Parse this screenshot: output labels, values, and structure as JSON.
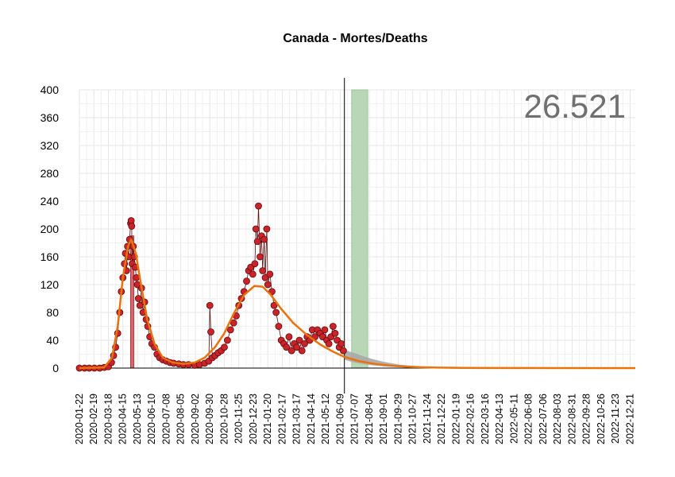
{
  "title": "Canada - Mortes/Deaths",
  "total_label": "26.521",
  "colors": {
    "points": "#cc2229",
    "point_outline": "#5a1010",
    "trend_line": "#e8730c",
    "confidence_band": "#a9a9a9",
    "highlight_band": "#b9d7b7",
    "peak_bar": "#d46a6f",
    "grid": "#e6e6e6"
  },
  "chart_data": {
    "type": "scatter",
    "title": "Canada - Mortes/Deaths",
    "xlabel": "",
    "ylabel": "",
    "ylim": [
      0,
      400
    ],
    "xlim": [
      "2020-01-22",
      "2022-12-31"
    ],
    "y_ticks": [
      0,
      40,
      80,
      120,
      160,
      200,
      240,
      280,
      320,
      360,
      400
    ],
    "x_tick_labels": [
      "2020-01-22",
      "2020-02-19",
      "2020-03-18",
      "2020-04-15",
      "2020-05-13",
      "2020-06-10",
      "2020-07-08",
      "2020-08-05",
      "2020-09-02",
      "2020-09-30",
      "2020-10-28",
      "2020-11-25",
      "2020-12-23",
      "2021-01-20",
      "2021-02-17",
      "2021-03-17",
      "2021-04-14",
      "2021-05-12",
      "2021-06-09",
      "2021-07-07",
      "2021-08-04",
      "2021-09-01",
      "2021-09-29",
      "2021-10-27",
      "2021-11-24",
      "2021-12-22",
      "2022-01-19",
      "2022-02-16",
      "2022-03-16",
      "2022-04-13",
      "2022-05-11",
      "2022-06-08",
      "2022-07-06",
      "2022-08-03",
      "2022-08-31",
      "2022-09-28",
      "2022-10-26",
      "2022-11-23",
      "2022-12-21"
    ],
    "grid": true,
    "reference_line_date": "2021-06-17",
    "highlight_band": [
      "2021-07-01",
      "2021-08-01"
    ],
    "peak_bar": {
      "x": [
        "2020-04-30",
        "2020-05-06"
      ],
      "y": 190
    },
    "series": [
      {
        "type": "scatter",
        "points": [
          [
            "2020-01-22",
            0
          ],
          [
            "2020-02-01",
            0
          ],
          [
            "2020-02-10",
            0
          ],
          [
            "2020-02-20",
            0
          ],
          [
            "2020-03-01",
            0
          ],
          [
            "2020-03-10",
            1
          ],
          [
            "2020-03-18",
            2
          ],
          [
            "2020-03-24",
            8
          ],
          [
            "2020-03-28",
            18
          ],
          [
            "2020-04-01",
            30
          ],
          [
            "2020-04-05",
            50
          ],
          [
            "2020-04-09",
            80
          ],
          [
            "2020-04-12",
            110
          ],
          [
            "2020-04-15",
            130
          ],
          [
            "2020-04-18",
            150
          ],
          [
            "2020-04-20",
            165
          ],
          [
            "2020-04-22",
            140
          ],
          [
            "2020-04-24",
            175
          ],
          [
            "2020-04-26",
            160
          ],
          [
            "2020-04-28",
            185
          ],
          [
            "2020-04-30",
            208
          ],
          [
            "2020-05-01",
            212
          ],
          [
            "2020-05-02",
            204
          ],
          [
            "2020-05-03",
            150
          ],
          [
            "2020-05-05",
            175
          ],
          [
            "2020-05-07",
            160
          ],
          [
            "2020-05-09",
            145
          ],
          [
            "2020-05-11",
            130
          ],
          [
            "2020-05-13",
            120
          ],
          [
            "2020-05-15",
            100
          ],
          [
            "2020-05-18",
            90
          ],
          [
            "2020-05-21",
            115
          ],
          [
            "2020-05-24",
            80
          ],
          [
            "2020-05-27",
            95
          ],
          [
            "2020-05-30",
            70
          ],
          [
            "2020-06-02",
            60
          ],
          [
            "2020-06-06",
            45
          ],
          [
            "2020-06-10",
            35
          ],
          [
            "2020-06-15",
            30
          ],
          [
            "2020-06-20",
            20
          ],
          [
            "2020-06-25",
            15
          ],
          [
            "2020-07-01",
            12
          ],
          [
            "2020-07-08",
            10
          ],
          [
            "2020-07-15",
            8
          ],
          [
            "2020-07-22",
            7
          ],
          [
            "2020-08-01",
            6
          ],
          [
            "2020-08-10",
            5
          ],
          [
            "2020-08-20",
            5
          ],
          [
            "2020-09-01",
            4
          ],
          [
            "2020-09-10",
            5
          ],
          [
            "2020-09-20",
            7
          ],
          [
            "2020-09-28",
            10
          ],
          [
            "2020-09-30",
            90
          ],
          [
            "2020-10-02",
            52
          ],
          [
            "2020-10-05",
            15
          ],
          [
            "2020-10-10",
            18
          ],
          [
            "2020-10-16",
            22
          ],
          [
            "2020-10-22",
            25
          ],
          [
            "2020-10-28",
            30
          ],
          [
            "2020-11-03",
            40
          ],
          [
            "2020-11-09",
            55
          ],
          [
            "2020-11-15",
            65
          ],
          [
            "2020-11-20",
            75
          ],
          [
            "2020-11-25",
            90
          ],
          [
            "2020-11-30",
            100
          ],
          [
            "2020-12-05",
            110
          ],
          [
            "2020-12-10",
            125
          ],
          [
            "2020-12-14",
            140
          ],
          [
            "2020-12-18",
            145
          ],
          [
            "2020-12-22",
            135
          ],
          [
            "2020-12-26",
            150
          ],
          [
            "2020-12-28",
            200
          ],
          [
            "2020-12-31",
            182
          ],
          [
            "2021-01-02",
            233
          ],
          [
            "2021-01-05",
            160
          ],
          [
            "2021-01-08",
            190
          ],
          [
            "2021-01-10",
            140
          ],
          [
            "2021-01-13",
            185
          ],
          [
            "2021-01-15",
            130
          ],
          [
            "2021-01-18",
            200
          ],
          [
            "2021-01-20",
            120
          ],
          [
            "2021-01-24",
            135
          ],
          [
            "2021-01-28",
            110
          ],
          [
            "2021-02-01",
            90
          ],
          [
            "2021-02-05",
            80
          ],
          [
            "2021-02-10",
            60
          ],
          [
            "2021-02-15",
            40
          ],
          [
            "2021-02-20",
            35
          ],
          [
            "2021-02-25",
            30
          ],
          [
            "2021-03-02",
            45
          ],
          [
            "2021-03-07",
            25
          ],
          [
            "2021-03-12",
            35
          ],
          [
            "2021-03-17",
            30
          ],
          [
            "2021-03-22",
            40
          ],
          [
            "2021-03-27",
            25
          ],
          [
            "2021-04-01",
            35
          ],
          [
            "2021-04-06",
            45
          ],
          [
            "2021-04-11",
            40
          ],
          [
            "2021-04-16",
            55
          ],
          [
            "2021-04-21",
            45
          ],
          [
            "2021-04-26",
            55
          ],
          [
            "2021-05-01",
            50
          ],
          [
            "2021-05-06",
            45
          ],
          [
            "2021-05-10",
            55
          ],
          [
            "2021-05-14",
            40
          ],
          [
            "2021-05-18",
            35
          ],
          [
            "2021-05-22",
            45
          ],
          [
            "2021-05-26",
            60
          ],
          [
            "2021-05-30",
            50
          ],
          [
            "2021-06-03",
            40
          ],
          [
            "2021-06-07",
            30
          ],
          [
            "2021-06-11",
            35
          ],
          [
            "2021-06-15",
            25
          ]
        ]
      },
      {
        "type": "line",
        "points": [
          [
            "2020-01-22",
            0
          ],
          [
            "2020-03-10",
            1
          ],
          [
            "2020-03-25",
            15
          ],
          [
            "2020-04-05",
            60
          ],
          [
            "2020-04-15",
            130
          ],
          [
            "2020-04-25",
            175
          ],
          [
            "2020-05-01",
            185
          ],
          [
            "2020-05-10",
            165
          ],
          [
            "2020-05-20",
            120
          ],
          [
            "2020-06-01",
            70
          ],
          [
            "2020-06-15",
            35
          ],
          [
            "2020-07-01",
            15
          ],
          [
            "2020-07-20",
            8
          ],
          [
            "2020-08-10",
            6
          ],
          [
            "2020-09-01",
            8
          ],
          [
            "2020-09-20",
            15
          ],
          [
            "2020-10-10",
            30
          ],
          [
            "2020-10-28",
            50
          ],
          [
            "2020-11-15",
            78
          ],
          [
            "2020-12-05",
            105
          ],
          [
            "2020-12-25",
            118
          ],
          [
            "2021-01-10",
            117
          ],
          [
            "2021-01-25",
            106
          ],
          [
            "2021-02-15",
            85
          ],
          [
            "2021-03-10",
            65
          ],
          [
            "2021-04-05",
            48
          ],
          [
            "2021-05-01",
            34
          ],
          [
            "2021-05-25",
            24
          ],
          [
            "2021-06-17",
            16
          ],
          [
            "2021-07-15",
            10
          ],
          [
            "2021-08-15",
            6
          ],
          [
            "2021-09-15",
            3.5
          ],
          [
            "2021-10-15",
            2
          ],
          [
            "2021-11-15",
            1.2
          ],
          [
            "2021-12-15",
            0.7
          ],
          [
            "2022-02-01",
            0.3
          ],
          [
            "2022-04-01",
            0.1
          ],
          [
            "2022-12-31",
            0
          ]
        ]
      },
      {
        "type": "area",
        "points": [
          [
            "2021-06-17",
            12,
            26
          ],
          [
            "2021-07-01",
            9,
            23
          ],
          [
            "2021-07-20",
            6,
            18
          ],
          [
            "2021-08-10",
            4,
            13
          ],
          [
            "2021-09-01",
            2.5,
            9
          ],
          [
            "2021-10-01",
            1.2,
            5
          ],
          [
            "2021-11-01",
            0.5,
            3
          ],
          [
            "2021-12-01",
            0.2,
            1.5
          ],
          [
            "2022-01-01",
            0,
            0.8
          ]
        ]
      }
    ]
  }
}
